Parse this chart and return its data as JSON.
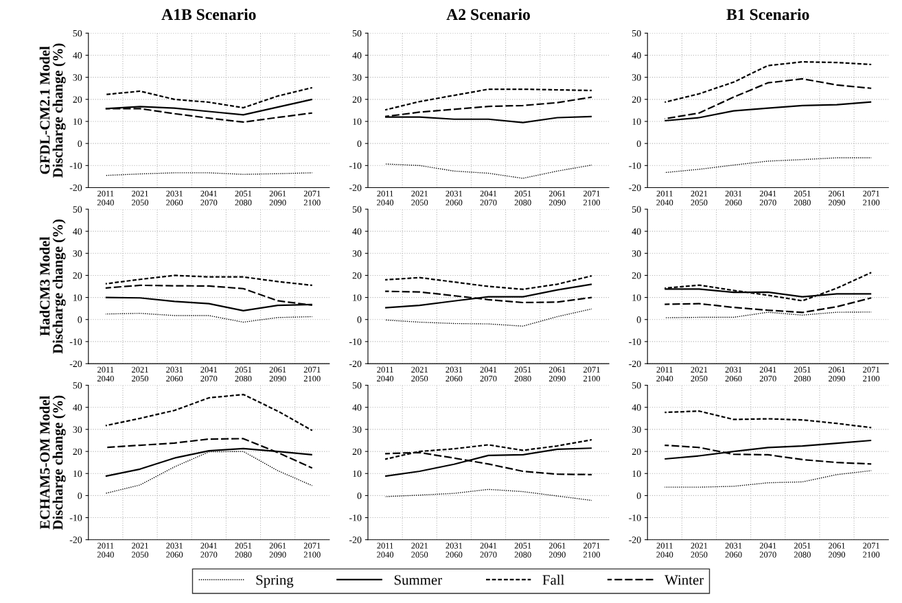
{
  "chart_data": [
    {
      "type": "line",
      "title": "A1B Scenario",
      "ylabel": "GFDL-CM2.1 Model\nDischarge change (%)",
      "categories": [
        "2011\n2040",
        "2021\n2050",
        "2031\n2060",
        "2041\n2070",
        "2051\n2080",
        "2061\n2090",
        "2071\n2100"
      ],
      "ylim": [
        -20,
        50
      ],
      "yticks": [
        -20,
        -10,
        0,
        10,
        20,
        30,
        40,
        50
      ],
      "grid": true,
      "legend": "bottom",
      "series": [
        {
          "name": "Spring",
          "color": "#000000",
          "line_style": "dotted",
          "values": [
            -14.5,
            -13.8,
            -13.3,
            -13.3,
            -14,
            -13.7,
            -13.3
          ]
        },
        {
          "name": "Summer",
          "color": "#000000",
          "line_style": "solid",
          "values": [
            15.8,
            16.7,
            16,
            14.5,
            13,
            16.5,
            20
          ]
        },
        {
          "name": "Fall",
          "color": "#000000",
          "line_style": "dashed",
          "values": [
            22.2,
            23.7,
            20,
            18.7,
            16.2,
            21.5,
            25.3
          ]
        },
        {
          "name": "Winter",
          "color": "#000000",
          "line_style": "long dashed",
          "values": [
            15.8,
            15.8,
            13.5,
            11.5,
            9.7,
            11.8,
            13.8
          ]
        }
      ]
    },
    {
      "type": "line",
      "title": "A2 Scenario",
      "categories": [
        "2011\n2040",
        "2021\n2050",
        "2031\n2060",
        "2041\n2070",
        "2051\n2080",
        "2061\n2090",
        "2071\n2100"
      ],
      "ylim": [
        -20,
        50
      ],
      "yticks": [
        -20,
        -10,
        0,
        10,
        20,
        30,
        40,
        50
      ],
      "grid": true,
      "legend": false,
      "series": [
        {
          "color": "#000000",
          "line_style": "dotted",
          "values": [
            -9.3,
            -10,
            -12.5,
            -13.5,
            -15.8,
            -12.5,
            -9.8
          ]
        },
        {
          "color": "#000000",
          "line_style": "solid",
          "values": [
            12,
            12,
            11,
            11,
            9.5,
            11.7,
            12.2
          ]
        },
        {
          "color": "#000000",
          "line_style": "dashed",
          "values": [
            15.2,
            19,
            21.8,
            24.6,
            24.6,
            24.3,
            24
          ]
        },
        {
          "color": "#000000",
          "line_style": "long dashed",
          "values": [
            12.2,
            14.2,
            15.5,
            16.8,
            17.2,
            18.5,
            21
          ]
        }
      ]
    },
    {
      "type": "line",
      "title": "B1 Scenario",
      "categories": [
        "2011\n2040",
        "2021\n2050",
        "2031\n2060",
        "2041\n2070",
        "2051\n2080",
        "2061\n2090",
        "2071\n2100"
      ],
      "ylim": [
        -20,
        50
      ],
      "yticks": [
        -20,
        -10,
        0,
        10,
        20,
        30,
        40,
        50
      ],
      "grid": true,
      "legend": false,
      "series": [
        {
          "color": "#000000",
          "line_style": "dotted",
          "values": [
            -13.2,
            -11.7,
            -9.8,
            -8,
            -7.3,
            -6.5,
            -6.5
          ]
        },
        {
          "color": "#000000",
          "line_style": "solid",
          "values": [
            10.3,
            11.7,
            14.8,
            16,
            17.2,
            17.6,
            18.8
          ]
        },
        {
          "color": "#000000",
          "line_style": "dashed",
          "values": [
            18.7,
            22.5,
            27.8,
            35.3,
            37,
            36.7,
            35.8
          ]
        },
        {
          "color": "#000000",
          "line_style": "long dashed",
          "values": [
            11.2,
            13.8,
            21,
            27.5,
            29.3,
            26.5,
            25
          ]
        }
      ]
    },
    {
      "type": "line",
      "ylabel": "HadCM3 Model\nDischarge change (%)",
      "categories": [
        "2011\n2040",
        "2021\n2050",
        "2031\n2060",
        "2041\n2070",
        "2051\n2080",
        "2061\n2090",
        "2071\n2100"
      ],
      "ylim": [
        -20,
        50
      ],
      "yticks": [
        -20,
        -10,
        0,
        10,
        20,
        30,
        40,
        50
      ],
      "grid": true,
      "legend": false,
      "series": [
        {
          "color": "#000000",
          "line_style": "dotted",
          "values": [
            2.5,
            2.8,
            1.8,
            1.8,
            -1.2,
            0.9,
            1.3
          ]
        },
        {
          "color": "#000000",
          "line_style": "solid",
          "values": [
            10,
            9.8,
            8.2,
            7.2,
            4,
            6.4,
            6.8
          ]
        },
        {
          "color": "#000000",
          "line_style": "dashed",
          "values": [
            16.2,
            18.2,
            20,
            19.3,
            19.3,
            17.2,
            15.5
          ]
        },
        {
          "color": "#000000",
          "line_style": "long dashed",
          "values": [
            14.3,
            15.5,
            15.3,
            15.2,
            14,
            8.5,
            6.5
          ]
        }
      ]
    },
    {
      "type": "line",
      "categories": [
        "2011\n2040",
        "2021\n2050",
        "2031\n2060",
        "2041\n2070",
        "2051\n2080",
        "2061\n2090",
        "2071\n2100"
      ],
      "ylim": [
        -20,
        50
      ],
      "yticks": [
        -20,
        -10,
        0,
        10,
        20,
        30,
        40,
        50
      ],
      "grid": true,
      "legend": false,
      "series": [
        {
          "color": "#000000",
          "line_style": "dotted",
          "values": [
            -0.2,
            -1.2,
            -1.8,
            -2,
            -3,
            1.3,
            4.8
          ]
        },
        {
          "color": "#000000",
          "line_style": "solid",
          "values": [
            5.3,
            6.4,
            8.4,
            10.3,
            10.3,
            13.4,
            16
          ]
        },
        {
          "color": "#000000",
          "line_style": "dashed",
          "values": [
            18,
            19,
            17,
            15,
            13.7,
            16,
            19.8
          ]
        },
        {
          "color": "#000000",
          "line_style": "long dashed",
          "values": [
            12.8,
            12.5,
            10.8,
            9,
            7.7,
            7.9,
            10
          ]
        }
      ]
    },
    {
      "type": "line",
      "categories": [
        "2011\n2040",
        "2021\n2050",
        "2031\n2060",
        "2041\n2070",
        "2051\n2080",
        "2061\n2090",
        "2071\n2100"
      ],
      "ylim": [
        -20,
        50
      ],
      "yticks": [
        -20,
        -10,
        0,
        10,
        20,
        30,
        40,
        50
      ],
      "grid": true,
      "legend": false,
      "series": [
        {
          "color": "#000000",
          "line_style": "dotted",
          "values": [
            0.8,
            1,
            1,
            3.3,
            2,
            3.3,
            3.4
          ]
        },
        {
          "color": "#000000",
          "line_style": "solid",
          "values": [
            13.8,
            13.8,
            12.3,
            12.4,
            10.3,
            11.6,
            11.6
          ]
        },
        {
          "color": "#000000",
          "line_style": "dashed",
          "values": [
            14.2,
            15.6,
            13.2,
            11,
            8.5,
            14.2,
            21.3
          ]
        },
        {
          "color": "#000000",
          "line_style": "long dashed",
          "values": [
            6.9,
            7.2,
            5.5,
            4.2,
            3.2,
            5.8,
            9.8
          ]
        }
      ]
    },
    {
      "type": "line",
      "ylabel": "ECHAM5-OM Model\nDischarge change (%)",
      "categories": [
        "2011\n2040",
        "2021\n2050",
        "2031\n2060",
        "2041\n2070",
        "2051\n2080",
        "2061\n2090",
        "2071\n2100"
      ],
      "ylim": [
        -20,
        50
      ],
      "yticks": [
        -20,
        -10,
        0,
        10,
        20,
        30,
        40,
        50
      ],
      "grid": true,
      "legend": false,
      "series": [
        {
          "color": "#000000",
          "line_style": "dotted",
          "values": [
            1,
            4.8,
            13,
            19.8,
            20,
            11.3,
            4.5
          ]
        },
        {
          "color": "#000000",
          "line_style": "solid",
          "values": [
            8.8,
            12,
            17,
            20.3,
            21.3,
            20,
            18.5
          ]
        },
        {
          "color": "#000000",
          "line_style": "dashed",
          "values": [
            31.7,
            35,
            38.6,
            44.3,
            45.8,
            38.3,
            29.5
          ]
        },
        {
          "color": "#000000",
          "line_style": "long dashed",
          "values": [
            21.8,
            22.8,
            23.8,
            25.6,
            25.8,
            19.5,
            12.5
          ]
        }
      ]
    },
    {
      "type": "line",
      "categories": [
        "2011\n2040",
        "2021\n2050",
        "2031\n2060",
        "2041\n2070",
        "2051\n2080",
        "2061\n2090",
        "2071\n2100"
      ],
      "ylim": [
        -20,
        50
      ],
      "yticks": [
        -20,
        -10,
        0,
        10,
        20,
        30,
        40,
        50
      ],
      "grid": true,
      "series": [
        {
          "color": "#000000",
          "line_style": "dotted",
          "values": [
            -0.5,
            0.2,
            1,
            2.8,
            1.8,
            -0.2,
            -2.2
          ]
        },
        {
          "color": "#000000",
          "line_style": "solid",
          "values": [
            8.8,
            11,
            14.2,
            18.2,
            18.5,
            21,
            21.5
          ]
        },
        {
          "color": "#000000",
          "line_style": "dashed",
          "values": [
            16.5,
            20,
            21.2,
            23,
            20.5,
            22.5,
            25.3
          ]
        },
        {
          "color": "#000000",
          "line_style": "long dashed",
          "values": [
            19,
            19.5,
            17,
            14.3,
            11,
            9.7,
            9.5
          ]
        }
      ]
    },
    {
      "type": "line",
      "categories": [
        "2011\n2040",
        "2021\n2050",
        "2031\n2060",
        "2041\n2070",
        "2051\n2080",
        "2061\n2090",
        "2071\n2100"
      ],
      "ylim": [
        -20,
        50
      ],
      "yticks": [
        -20,
        -10,
        0,
        10,
        20,
        30,
        40,
        50
      ],
      "grid": true,
      "legend": false,
      "series": [
        {
          "color": "#000000",
          "line_style": "dotted",
          "values": [
            3.8,
            3.8,
            4.2,
            5.8,
            6.2,
            9.5,
            11.3
          ]
        },
        {
          "color": "#000000",
          "line_style": "solid",
          "values": [
            16.6,
            18,
            20,
            21.8,
            22.5,
            23.7,
            25
          ]
        },
        {
          "color": "#000000",
          "line_style": "dashed",
          "values": [
            37.7,
            38.3,
            34.5,
            34.8,
            34.3,
            32.7,
            30.8
          ]
        },
        {
          "color": "#000000",
          "line_style": "long dashed",
          "values": [
            22.8,
            21.8,
            18.7,
            18.5,
            16.3,
            15,
            14.3
          ]
        }
      ]
    }
  ]
}
